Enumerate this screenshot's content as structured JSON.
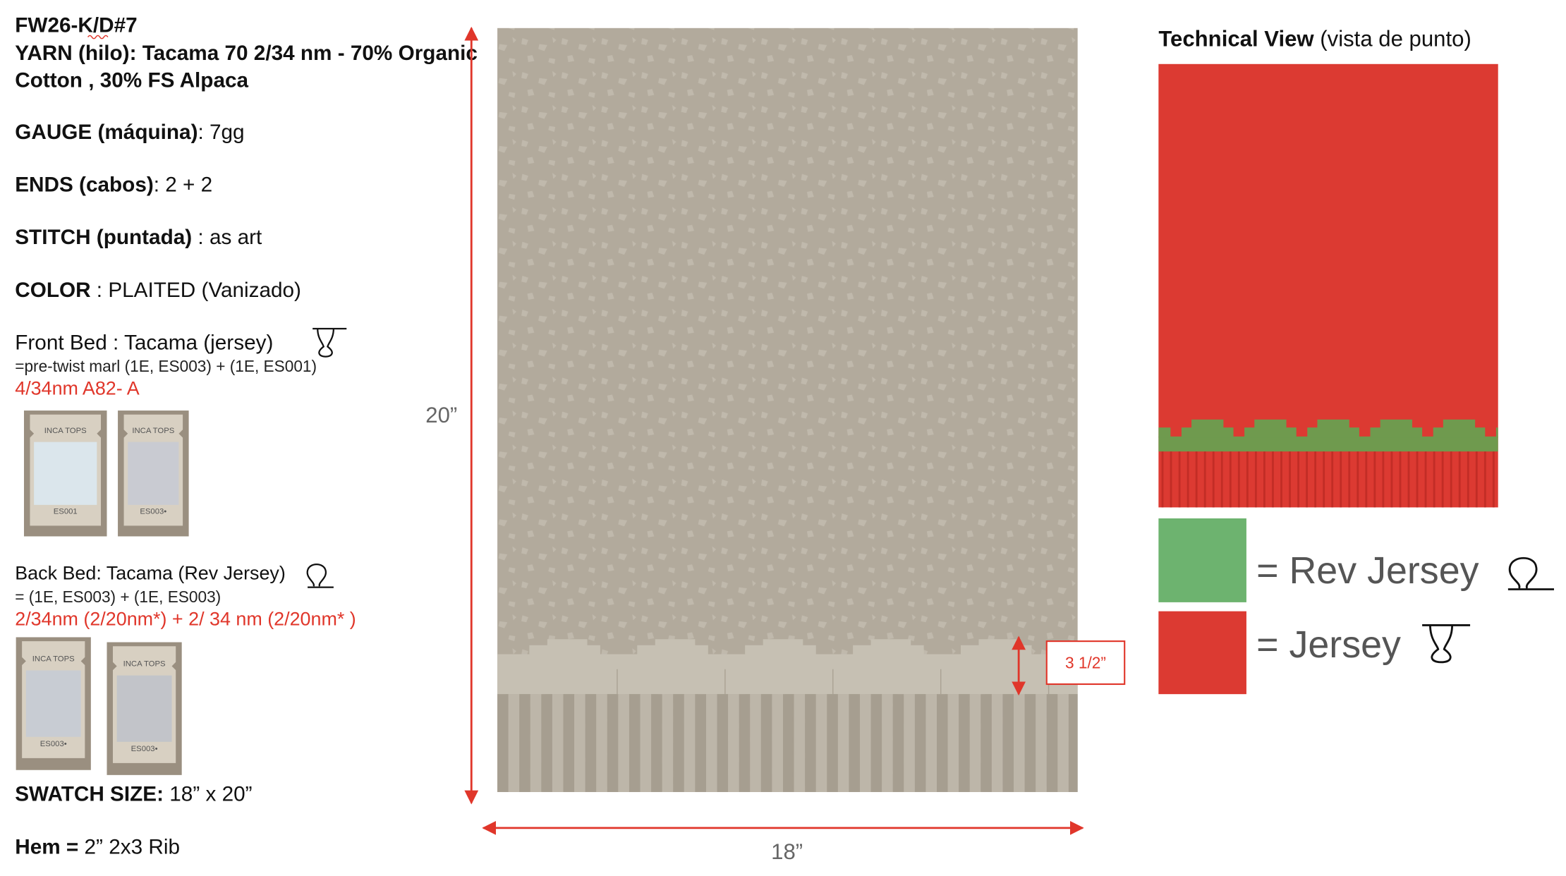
{
  "header": {
    "code": "FW26-K/D#7"
  },
  "yarn": {
    "lines": [
      "YARN (hilo): Tacama 70 2/34 nm - 70% Organic",
      "Cotton , 30% FS Alpaca"
    ]
  },
  "specs": [
    {
      "label": "GAUGE (máquina)",
      "value": ": 7gg"
    },
    {
      "label": "ENDS (cabos)",
      "value": ": 2 + 2"
    },
    {
      "label": "STITCH (puntada)",
      "value": " : as art"
    },
    {
      "label": "COLOR",
      "value": " : PLAITED (Vanizado)"
    }
  ],
  "front_bed": {
    "title": "Front Bed : Tacama  (jersey)",
    "detail": "=pre-twist marl (1E, ES003) + (1E, ES001)",
    "yarn_code": "4/34nm A82- A",
    "cards": [
      {
        "brand": "INCA TOPS",
        "code": "ES001"
      },
      {
        "brand": "INCA TOPS",
        "code": "ES003•"
      }
    ]
  },
  "back_bed": {
    "title": "Back Bed: Tacama  (Rev Jersey)",
    "detail": "= (1E, ES003) + (1E, ES003)",
    "yarn_code": "2/34nm (2/20nm*)  + 2/ 34 nm (2/20nm* )",
    "cards": [
      {
        "brand": "INCA TOPS",
        "code": "ES003•"
      },
      {
        "brand": "INCA TOPS",
        "code": "ES003•"
      }
    ]
  },
  "swatch_size": {
    "label": "SWATCH SIZE:",
    "value": " 18” x 20”"
  },
  "hem": {
    "label": "Hem =",
    "value": " 2” 2x3 Rib"
  },
  "drawing": {
    "height_label": "20”",
    "width_label": "18”",
    "pattern_label": "3 1/2”"
  },
  "technical_view": {
    "title": "Technical View",
    "subtitle": " (vista de punto)",
    "legend": [
      {
        "label": "= Rev Jersey"
      },
      {
        "label": "= Jersey"
      }
    ]
  }
}
